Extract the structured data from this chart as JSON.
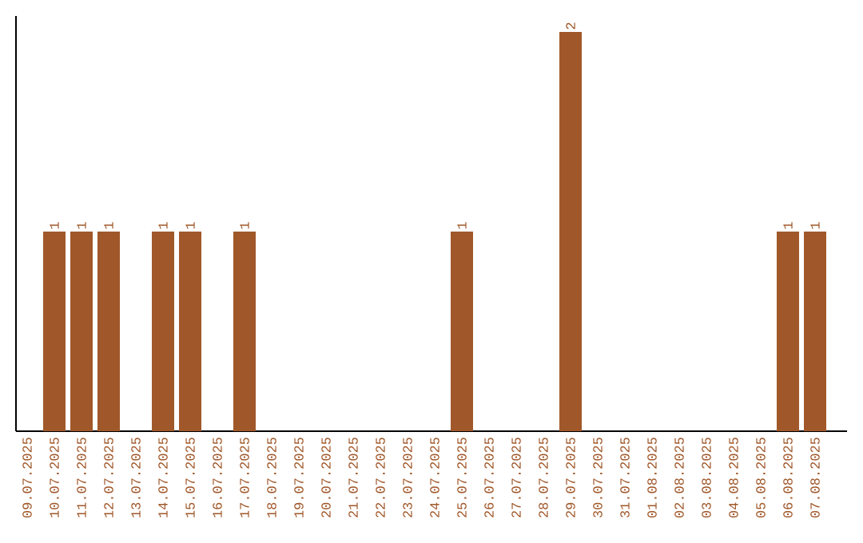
{
  "chart_data": {
    "type": "bar",
    "categories": [
      "09.07.2025",
      "10.07.2025",
      "11.07.2025",
      "12.07.2025",
      "13.07.2025",
      "14.07.2025",
      "15.07.2025",
      "16.07.2025",
      "17.07.2025",
      "18.07.2025",
      "19.07.2025",
      "20.07.2025",
      "21.07.2025",
      "22.07.2025",
      "23.07.2025",
      "24.07.2025",
      "25.07.2025",
      "26.07.2025",
      "27.07.2025",
      "28.07.2025",
      "29.07.2025",
      "30.07.2025",
      "31.07.2025",
      "01.08.2025",
      "02.08.2025",
      "03.08.2025",
      "04.08.2025",
      "05.08.2025",
      "06.08.2025",
      "07.08.2025"
    ],
    "values": [
      0,
      1,
      1,
      1,
      0,
      1,
      1,
      0,
      1,
      0,
      0,
      0,
      0,
      0,
      0,
      0,
      1,
      0,
      0,
      0,
      2,
      0,
      0,
      0,
      0,
      0,
      0,
      0,
      1,
      1
    ],
    "value_labels": [
      null,
      "1",
      "1",
      "1",
      null,
      "1",
      "1",
      null,
      "1",
      null,
      null,
      null,
      null,
      null,
      null,
      null,
      "1",
      null,
      null,
      null,
      "2",
      null,
      null,
      null,
      null,
      null,
      null,
      null,
      "1",
      "1"
    ],
    "color": "#a0582a"
  }
}
